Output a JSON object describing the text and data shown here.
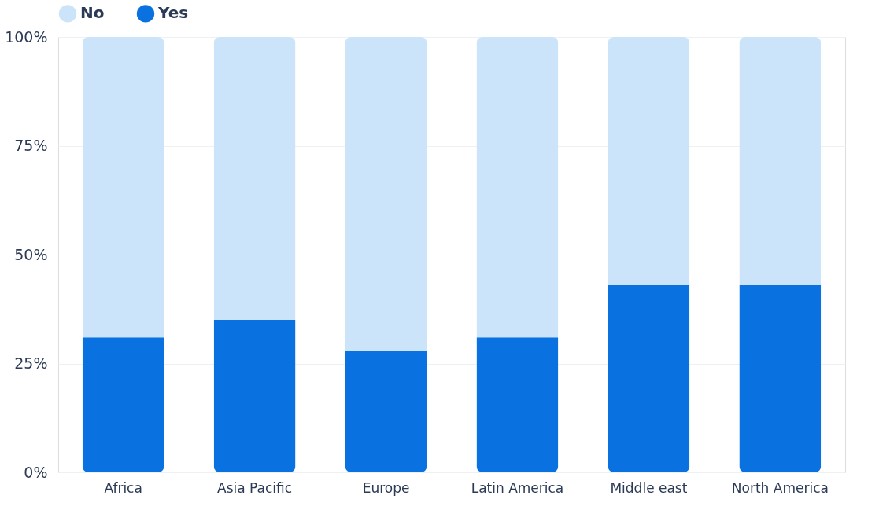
{
  "chart_data": {
    "type": "bar",
    "stacked": true,
    "categories": [
      "Africa",
      "Asia Pacific",
      "Europe",
      "Latin America",
      "Middle east",
      "North America"
    ],
    "series": [
      {
        "name": "Yes",
        "color": "#0a72e0",
        "values": [
          31,
          35,
          28,
          31,
          43,
          43
        ]
      },
      {
        "name": "No",
        "color": "#cce4f9",
        "values": [
          69,
          65,
          72,
          69,
          57,
          57
        ]
      }
    ],
    "ylim": [
      0,
      100
    ],
    "yticks": [
      {
        "value": 0,
        "label": "0%"
      },
      {
        "value": 25,
        "label": "25%"
      },
      {
        "value": 50,
        "label": "50%"
      },
      {
        "value": 75,
        "label": "75%"
      },
      {
        "value": 100,
        "label": "100%"
      }
    ],
    "grid": "y",
    "legend": "top"
  }
}
